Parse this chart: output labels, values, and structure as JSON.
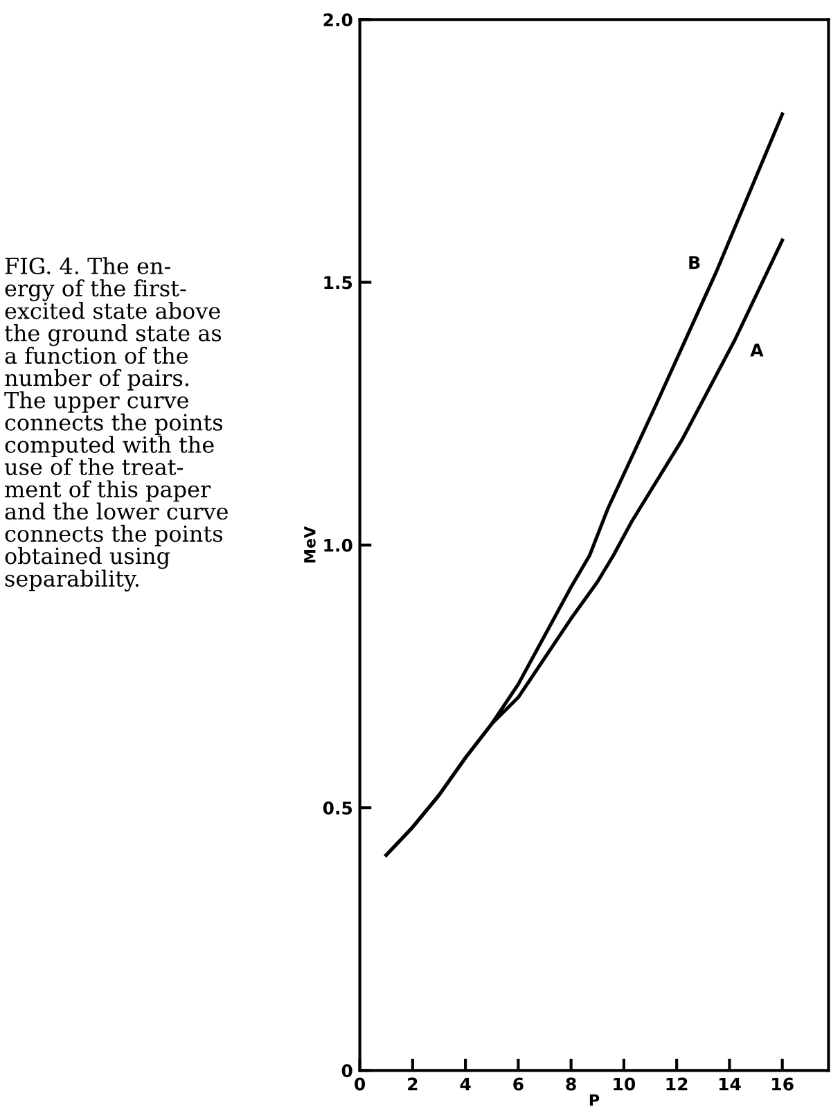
{
  "chart_data": {
    "type": "line",
    "xlabel": "P",
    "ylabel": "MeV",
    "xlim": [
      0,
      17.75
    ],
    "ylim": [
      0,
      2.0
    ],
    "xticks": [
      0,
      2,
      4,
      6,
      8,
      10,
      12,
      14,
      16
    ],
    "yticks": [
      0,
      {
        "value": 0.5,
        "label": "0.5"
      },
      {
        "value": 1.0,
        "label": "1.0"
      },
      {
        "value": 1.5,
        "label": "1.5"
      },
      {
        "value": 2.0,
        "label": "2.0"
      }
    ],
    "grid": false,
    "legend": false,
    "marker": "none",
    "line_style": "solid",
    "series": [
      {
        "name": "A",
        "color": "#000000",
        "x": [
          1,
          2,
          3,
          4,
          5,
          6,
          8,
          9,
          9.6,
          10.3,
          12.2,
          14.2,
          16
        ],
        "values": [
          0.41,
          0.463,
          0.524,
          0.595,
          0.66,
          0.71,
          0.86,
          0.93,
          0.98,
          1.045,
          1.2,
          1.39,
          1.58
        ]
      },
      {
        "name": "B",
        "color": "#000000",
        "x": [
          1,
          2,
          3,
          4,
          5,
          6,
          8,
          8.7,
          9.4,
          11.2,
          13.5,
          16
        ],
        "values": [
          0.41,
          0.463,
          0.524,
          0.595,
          0.66,
          0.735,
          0.92,
          0.98,
          1.07,
          1.265,
          1.52,
          1.82
        ]
      }
    ],
    "annotations": [
      "FIG. 4. The en-\nergy of the first-\nexcited state above\nthe ground state as\na function of the\nnumber of pairs.\nThe upper curve\nconnects the points\ncomputed with the\nuse of the treat-\nment of this paper\nand the lower curve\nconnects the points\nobtained using\nseparability."
    ]
  }
}
